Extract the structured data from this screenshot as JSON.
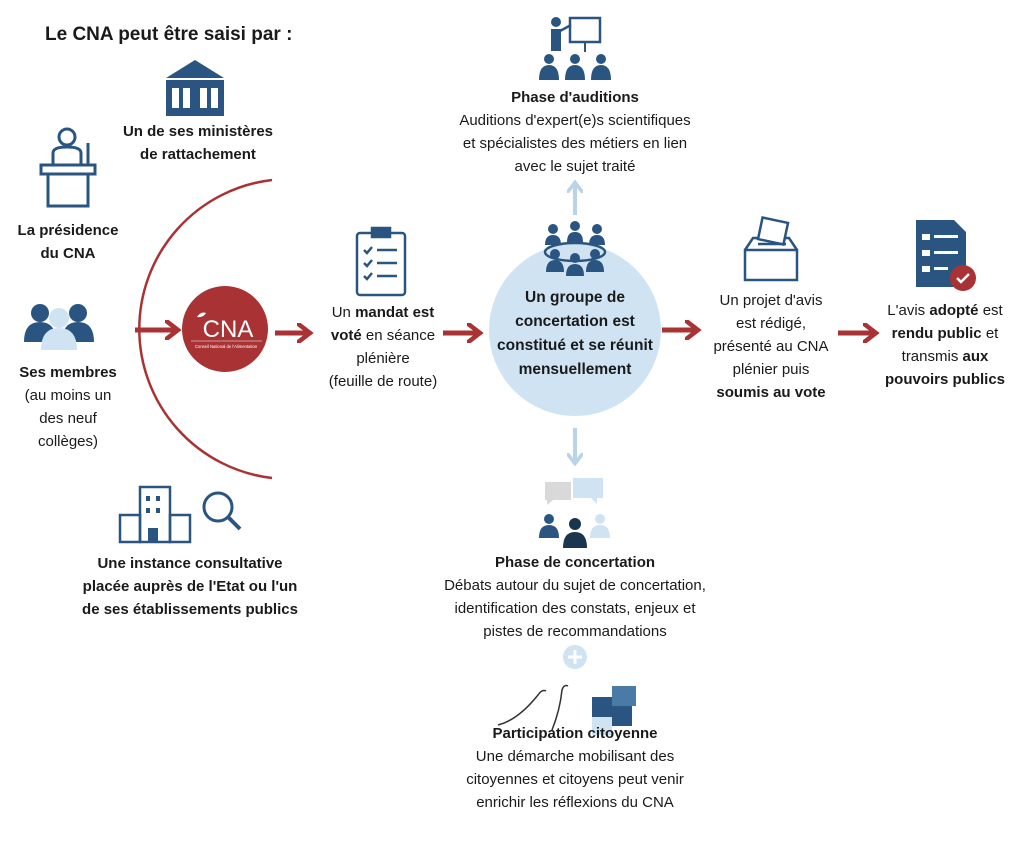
{
  "title": "Le CNA peut être saisi par :",
  "colors": {
    "navy": "#2a5580",
    "red": "#a83234",
    "light_blue": "#cfe3f3",
    "arrow_light": "#b8d3ea"
  },
  "logo": {
    "text": "CNA",
    "subtitle": "Conseil National de l'Alimentation"
  },
  "sources": {
    "ministry": {
      "icon": "government-building-icon",
      "lines": [
        [
          {
            "t": "Un de ses ministères",
            "b": true
          }
        ],
        [
          {
            "t": "de rattachement",
            "b": true
          }
        ]
      ]
    },
    "presidency": {
      "icon": "podium-speaker-icon",
      "lines": [
        [
          {
            "t": "La présidence",
            "b": true
          }
        ],
        [
          {
            "t": "du CNA",
            "b": true
          }
        ]
      ]
    },
    "members": {
      "icon": "people-group-icon",
      "lines": [
        [
          {
            "t": "Ses membres",
            "b": true
          }
        ],
        [
          {
            "t": "(au moins un",
            "b": false
          }
        ],
        [
          {
            "t": "des neuf",
            "b": false
          }
        ],
        [
          {
            "t": "collèges)",
            "b": false
          }
        ]
      ]
    },
    "instance": {
      "icon": "building-magnifier-icon",
      "lines": [
        [
          {
            "t": "Une instance consultative",
            "b": true
          }
        ],
        [
          {
            "t": "placée auprès de l'Etat ou l'un",
            "b": true
          }
        ],
        [
          {
            "t": "de ses établissements publics",
            "b": true
          }
        ]
      ]
    }
  },
  "steps": {
    "mandate": {
      "icon": "clipboard-checklist-icon",
      "lines": [
        [
          {
            "t": "Un ",
            "b": false
          },
          {
            "t": "mandat est",
            "b": true
          }
        ],
        [
          {
            "t": "voté",
            "b": true
          },
          {
            "t": " en séance",
            "b": false
          }
        ],
        [
          {
            "t": "plénière",
            "b": false
          }
        ],
        [
          {
            "t": "(feuille de route)",
            "b": false
          }
        ]
      ]
    },
    "group": {
      "icon": "meeting-table-icon",
      "lines": [
        [
          {
            "t": "Un groupe de",
            "b": true
          }
        ],
        [
          {
            "t": "concertation est",
            "b": true
          }
        ],
        [
          {
            "t": "constitué et se réunit",
            "b": true
          }
        ],
        [
          {
            "t": "mensuellement",
            "b": true
          }
        ]
      ]
    },
    "draft": {
      "icon": "ballot-box-icon",
      "lines": [
        [
          {
            "t": "Un projet d'avis",
            "b": false
          }
        ],
        [
          {
            "t": "est rédigé,",
            "b": false
          }
        ],
        [
          {
            "t": "présenté au CNA",
            "b": false
          }
        ],
        [
          {
            "t": "plénier puis",
            "b": false
          }
        ],
        [
          {
            "t": "soumis au vote",
            "b": true
          }
        ]
      ]
    },
    "public": {
      "icon": "approved-document-icon",
      "lines": [
        [
          {
            "t": "L'avis ",
            "b": false
          },
          {
            "t": "adopté",
            "b": true
          },
          {
            "t": " est",
            "b": false
          }
        ],
        [
          {
            "t": "rendu public",
            "b": true
          },
          {
            "t": " et",
            "b": false
          }
        ],
        [
          {
            "t": "transmis ",
            "b": false
          },
          {
            "t": "aux",
            "b": true
          }
        ],
        [
          {
            "t": "pouvoirs publics",
            "b": true
          }
        ]
      ]
    }
  },
  "phases": {
    "auditions": {
      "icon": "presentation-audience-icon",
      "lines": [
        [
          {
            "t": "Phase d'auditions",
            "b": true
          }
        ],
        [
          {
            "t": "Auditions d'expert(e)s scientifiques",
            "b": false
          }
        ],
        [
          {
            "t": "et spécialistes des métiers en lien",
            "b": false
          }
        ],
        [
          {
            "t": "avec le sujet traité",
            "b": false
          }
        ]
      ]
    },
    "concertation": {
      "icon": "discussion-people-icon",
      "lines": [
        [
          {
            "t": "Phase de concertation",
            "b": true
          }
        ],
        [
          {
            "t": "Débats autour du sujet de concertation,",
            "b": false
          }
        ],
        [
          {
            "t": "identification des constats, enjeux et",
            "b": false
          }
        ],
        [
          {
            "t": "pistes de recommandations",
            "b": false
          }
        ]
      ]
    },
    "citizen": {
      "icon": "hands-puzzle-icon",
      "lines": [
        [
          {
            "t": "Participation citoyenne",
            "b": true
          }
        ],
        [
          {
            "t": "Une démarche mobilisant des",
            "b": false
          }
        ],
        [
          {
            "t": "citoyennes et citoyens peut venir",
            "b": false
          }
        ],
        [
          {
            "t": "enrichir les réflexions du CNA",
            "b": false
          }
        ]
      ]
    }
  }
}
